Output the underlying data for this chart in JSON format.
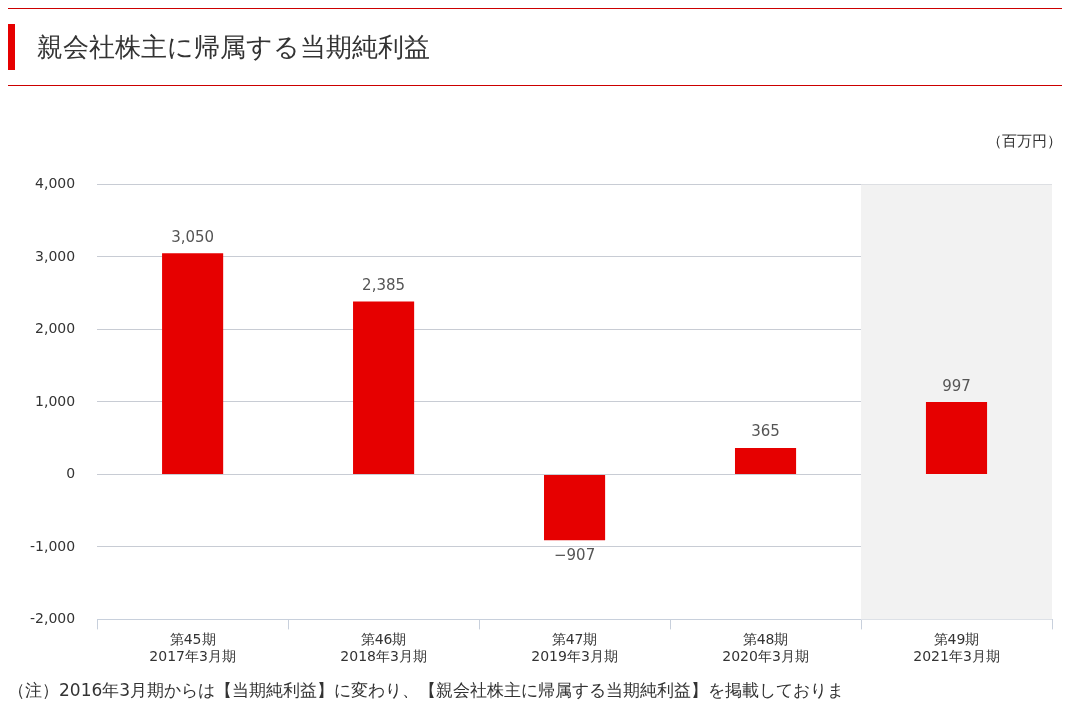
{
  "chart_data": {
    "type": "bar",
    "title": "親会社株主に帰属する当期純利益",
    "ylabel": "（百万円）",
    "categories": [
      "第45期\n2017年3月期",
      "第46期\n2018年3月期",
      "第47期\n2019年3月期",
      "第48期\n2020年3月期",
      "第49期\n2021年3月期"
    ],
    "values": [
      3050,
      2385,
      -907,
      365,
      997
    ],
    "color": "#e60000",
    "value_labels": [
      "3,050",
      "2,385",
      "−907",
      "365",
      "997"
    ],
    "ylim": [
      -2000,
      4000
    ],
    "yticks": [
      {
        "value": -2000,
        "label": "-2,000"
      },
      {
        "value": -1000,
        "label": "-1,000"
      },
      {
        "value": 0,
        "label": "0"
      },
      {
        "value": 1000,
        "label": "1,000"
      },
      {
        "value": 2000,
        "label": "2,000"
      },
      {
        "value": 3000,
        "label": "3,000"
      },
      {
        "value": 4000,
        "label": "4,000"
      }
    ],
    "grid": "y",
    "legend": false,
    "bands": [
      {
        "axis": "x",
        "from": "第49期\n2021年3月期",
        "to": "第49期\n2021年3月期",
        "color": "#f2f2f2"
      }
    ],
    "annotations": [
      "（注）2016年3月期からは【当期純利益】に変わり、【親会社株主に帰属する当期純利益】を掲載しておりま"
    ]
  }
}
